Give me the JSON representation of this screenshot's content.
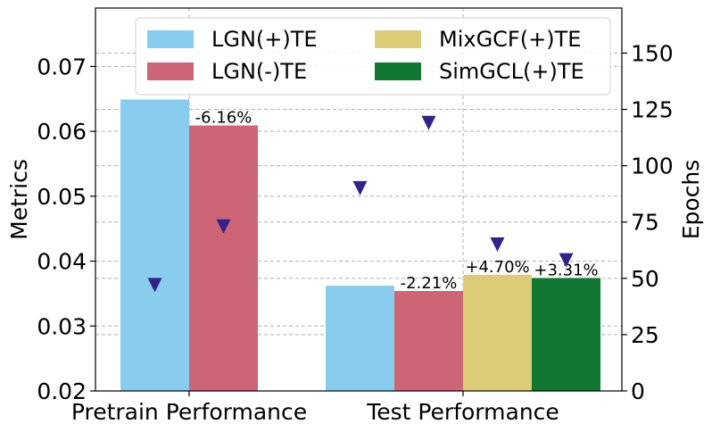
{
  "chart_data": {
    "type": "bar",
    "categories": [
      "Pretrain Performance",
      "Test Performance"
    ],
    "series": [
      {
        "name": "LGN(+)TE",
        "color": "#88CCEE",
        "values": [
          0.0649,
          0.0362
        ]
      },
      {
        "name": "LGN(-)TE",
        "color": "#CC6677",
        "values": [
          0.0609,
          0.0354
        ]
      },
      {
        "name": "MixGCF(+)TE",
        "color": "#DDCC77",
        "values": [
          null,
          0.0379
        ]
      },
      {
        "name": "SimGCL(+)TE",
        "color": "#117733",
        "values": [
          null,
          0.0374
        ]
      }
    ],
    "bar_labels": [
      {
        "series": 1,
        "category": 0,
        "text": "-6.16%"
      },
      {
        "series": 1,
        "category": 1,
        "text": "-2.21%"
      },
      {
        "series": 2,
        "category": 1,
        "text": "+4.70%"
      },
      {
        "series": 3,
        "category": 1,
        "text": "+3.31%"
      }
    ],
    "epochs": {
      "marker": "triangle-down",
      "color": "#332288",
      "points": [
        {
          "series": 0,
          "category": 0,
          "value": 47
        },
        {
          "series": 1,
          "category": 0,
          "value": 73
        },
        {
          "series": 0,
          "category": 1,
          "value": 90
        },
        {
          "series": 1,
          "category": 1,
          "value": 119
        },
        {
          "series": 2,
          "category": 1,
          "value": 65
        },
        {
          "series": 3,
          "category": 1,
          "value": 58
        }
      ]
    },
    "ylabel": "Metrics",
    "ylabel_right": "Epochs",
    "xlabel": "",
    "ylim": [
      0.02,
      0.079
    ],
    "ylim_right": [
      0,
      170
    ],
    "yticks": [
      "0.02",
      "0.03",
      "0.04",
      "0.05",
      "0.06",
      "0.07"
    ],
    "yticks_right": [
      "0",
      "25",
      "50",
      "75",
      "100",
      "125",
      "150"
    ],
    "grid": true,
    "legend_position": "top-right"
  }
}
